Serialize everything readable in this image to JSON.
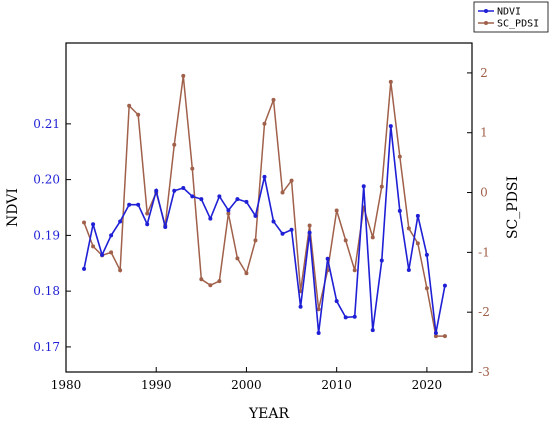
{
  "chart_data": {
    "type": "line",
    "xlabel": "YEAR",
    "ylabel_left": "NDVI",
    "ylabel_right": "SC_PDSI",
    "xlim": [
      1980,
      2025
    ],
    "ylim_left": [
      0.1655,
      0.2245
    ],
    "ylim_right": [
      -3,
      2.5
    ],
    "x_ticks": [
      1980,
      1990,
      2000,
      2010,
      2020
    ],
    "y_left_ticks": [
      0.17,
      0.18,
      0.19,
      0.2,
      0.21
    ],
    "y_right_ticks": [
      -3,
      -2,
      -1,
      0,
      1,
      2
    ],
    "x": [
      1982,
      1983,
      1984,
      1985,
      1986,
      1987,
      1988,
      1989,
      1990,
      1991,
      1992,
      1993,
      1994,
      1995,
      1996,
      1997,
      1998,
      1999,
      2000,
      2001,
      2002,
      2003,
      2004,
      2005,
      2006,
      2007,
      2008,
      2009,
      2010,
      2011,
      2012,
      2013,
      2014,
      2015,
      2016,
      2017,
      2018,
      2019,
      2020,
      2021,
      2022
    ],
    "legend_position": "top-right",
    "series": [
      {
        "name": "NDVI",
        "axis": "left",
        "color": "#1f1fd6",
        "values": [
          0.184,
          0.192,
          0.1865,
          0.19,
          0.1925,
          0.1955,
          0.1955,
          0.192,
          0.198,
          0.1915,
          0.198,
          0.1985,
          0.197,
          0.1965,
          0.193,
          0.197,
          0.1945,
          0.1965,
          0.196,
          0.1935,
          0.2005,
          0.1925,
          0.1903,
          0.191,
          0.1772,
          0.1905,
          0.1725,
          0.1858,
          0.1782,
          0.1753,
          0.1754,
          0.1988,
          0.173,
          0.1855,
          0.2096,
          0.1944,
          0.1838,
          0.1935,
          0.1865,
          0.1725,
          0.181
        ]
      },
      {
        "name": "SC_PDSI",
        "axis": "right",
        "color": "#a0604a",
        "values": [
          -0.5,
          -0.9,
          -1.05,
          -1.0,
          -1.3,
          1.45,
          1.3,
          -0.35,
          0,
          -0.55,
          0.8,
          1.95,
          0.4,
          -1.45,
          -1.55,
          -1.48,
          -0.35,
          -1.1,
          -1.35,
          -0.8,
          1.15,
          1.55,
          0,
          0.2,
          -1.65,
          -0.55,
          -1.95,
          -1.3,
          -0.3,
          -0.8,
          -1.3,
          -0.25,
          -0.75,
          0.1,
          1.85,
          0.6,
          -0.6,
          -0.85,
          -1.6,
          -2.4,
          -2.4
        ]
      }
    ]
  }
}
